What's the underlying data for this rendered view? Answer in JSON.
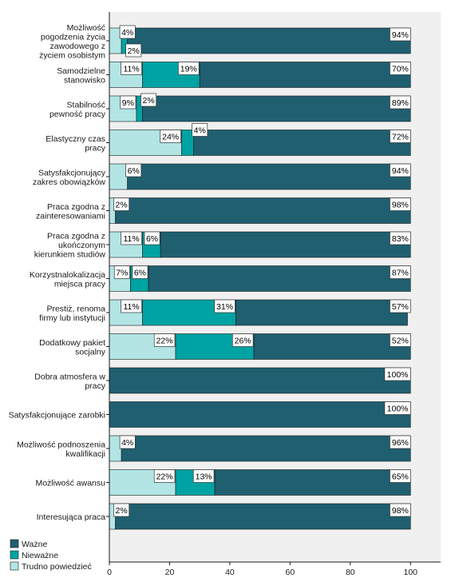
{
  "chart_data": {
    "type": "bar",
    "orientation": "horizontal",
    "stacked": true,
    "categories": [
      [
        "Możliwość",
        "pogodzenia życia",
        "zawodowego z",
        "życiem osobistym"
      ],
      [
        "Samodzielne",
        "stanowisko"
      ],
      [
        "Stabilność",
        "pewność pracy"
      ],
      [
        "Elastyczny czas",
        "pracy"
      ],
      [
        "Satysfakcjonujący",
        "zakres obowiązków"
      ],
      [
        "Praca zgodna z",
        "zainteresowaniami"
      ],
      [
        "Praca zgodna z",
        "ukończonym",
        "kierunkiem studiów"
      ],
      [
        "Korzystnalokalizacja",
        "miejsca pracy"
      ],
      [
        "Prestiż, renoma",
        "firmy lub instytucji"
      ],
      [
        "Dodatkowy pakiet",
        "socjalny"
      ],
      [
        "Dobra atmosfera w",
        "pracy"
      ],
      [
        "Satysfakcjonujące zarobki"
      ],
      [
        "Możliwość podnoszenia",
        "kwalifikacji"
      ],
      [
        "Możliwość awansu"
      ],
      [
        "Interesująca praca"
      ]
    ],
    "series": [
      {
        "name": "Trudno powiedzieć",
        "color": "#b3e5e5",
        "values": [
          4,
          11,
          9,
          24,
          6,
          2,
          11,
          7,
          11,
          22,
          0,
          0,
          4,
          22,
          2
        ]
      },
      {
        "name": "Nieważne",
        "color": "#00a3a3",
        "values": [
          2,
          19,
          2,
          4,
          0,
          0,
          6,
          6,
          31,
          26,
          0,
          0,
          0,
          13,
          0
        ]
      },
      {
        "name": "Ważne",
        "color": "#1f5f70",
        "values": [
          94,
          70,
          89,
          72,
          94,
          98,
          83,
          87,
          57,
          52,
          100,
          100,
          96,
          65,
          98
        ]
      }
    ],
    "data_labels": {
      "Trudno powiedzieć": [
        "4%",
        "11%",
        "9%",
        "24%",
        "6%",
        "2%",
        "11%",
        "7%",
        "11%",
        "22%",
        "",
        "",
        "4%",
        "22%",
        "2%"
      ],
      "Nieważne": [
        "2%",
        "19%",
        "2%",
        "4%",
        "",
        "",
        "6%",
        "6%",
        "31%",
        "26%",
        "",
        "",
        "",
        "13%",
        ""
      ],
      "Ważne": [
        "94%",
        "70%",
        "89%",
        "72%",
        "94%",
        "98%",
        "83%",
        "87%",
        "57%",
        "52%",
        "100%",
        "100%",
        "96%",
        "65%",
        "98%"
      ]
    },
    "xlim": [
      0,
      110
    ],
    "xticks": [
      "0",
      "20",
      "40",
      "60",
      "80",
      "100"
    ],
    "legend": {
      "position": "bottom-left",
      "entries": [
        "Ważne",
        "Nieważne",
        "Trudno powiedzieć"
      ]
    },
    "title": "",
    "xlabel": "",
    "ylabel": "",
    "grid": false,
    "colors": {
      "plot_background": "#f0f0f0",
      "bar_border": "#1a1a1a"
    }
  }
}
